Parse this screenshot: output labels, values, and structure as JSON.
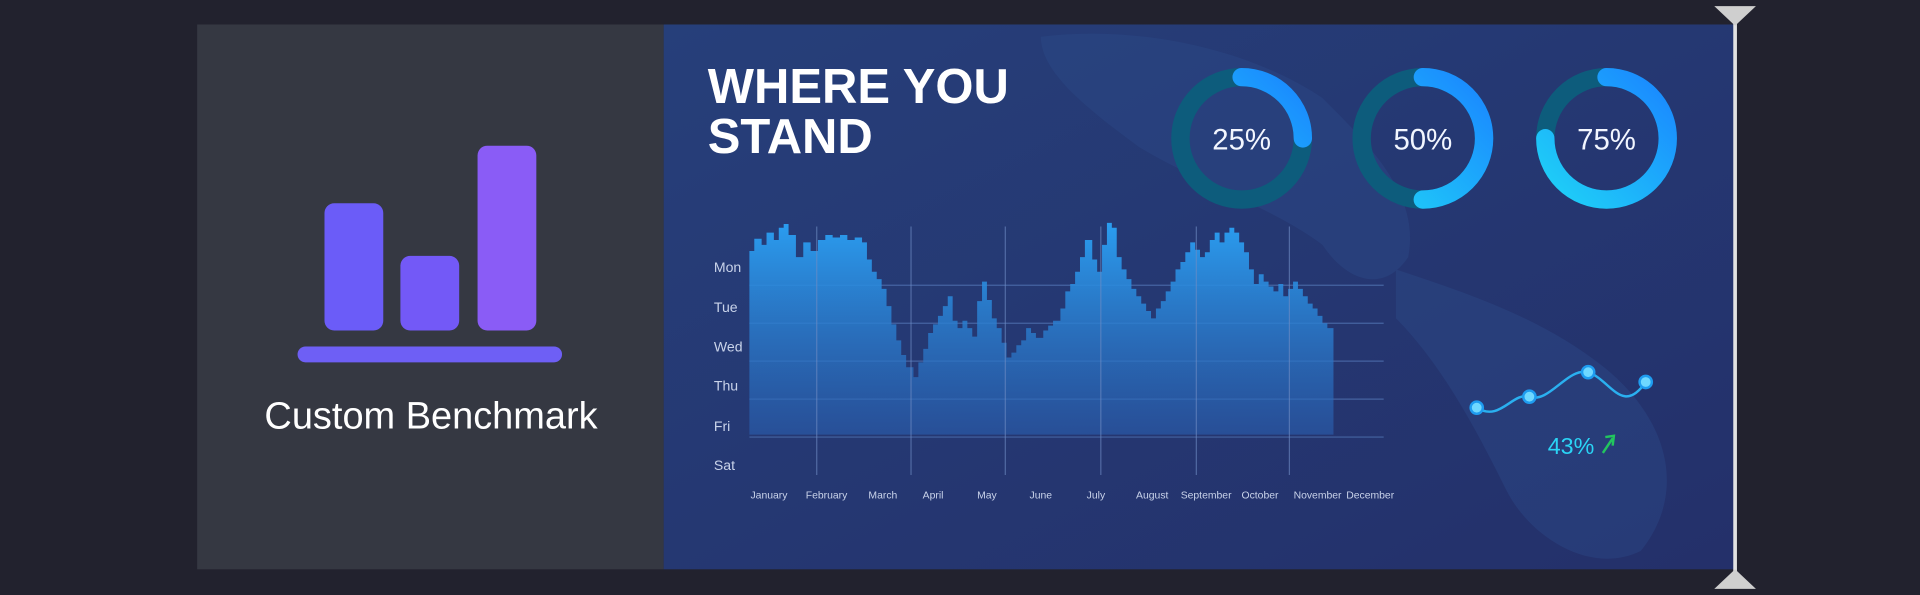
{
  "panel": {
    "label": "Custom Benchmark"
  },
  "dashboard": {
    "title_lines": [
      "WHERE YOU",
      "STAND"
    ],
    "gauges": [
      {
        "label": "25%",
        "value": 25
      },
      {
        "label": "50%",
        "value": 50
      },
      {
        "label": "75%",
        "value": 75
      }
    ],
    "rows": [
      "Mon",
      "Tue",
      "Wed",
      "Thu",
      "Fri",
      "Sat"
    ],
    "months": [
      "January",
      "February",
      "March",
      "April",
      "May",
      "June",
      "July",
      "August",
      "September",
      "October",
      "November",
      "December"
    ],
    "trend_label": "43%"
  }
}
